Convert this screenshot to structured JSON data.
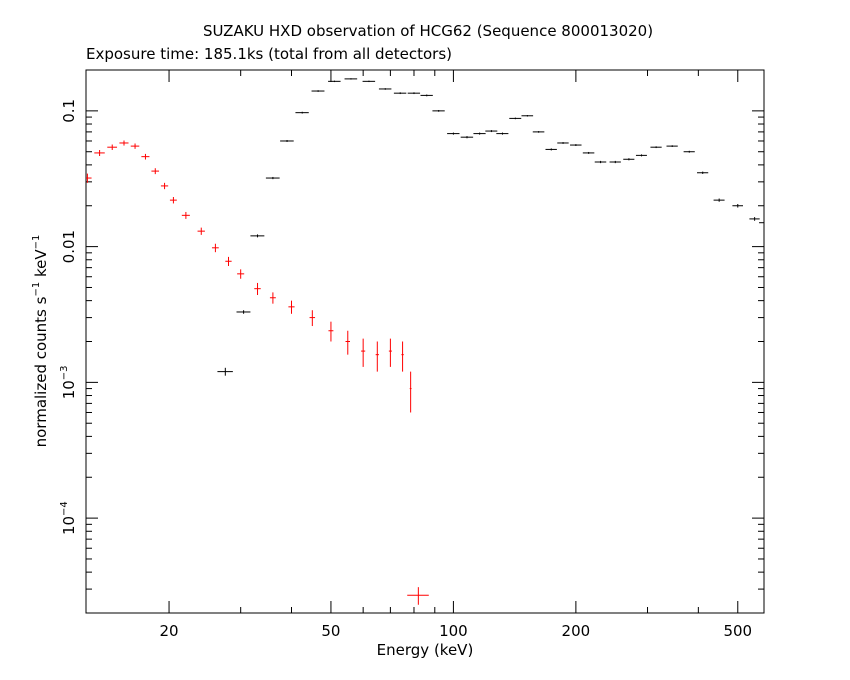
{
  "chart_data": {
    "type": "scatter",
    "title": "SUZAKU HXD observation of HCG62 (Sequence 800013020)",
    "subtitle": "Exposure time: 185.1ks (total from all detectors)",
    "xlabel": "Energy (keV)",
    "ylabel_main": "normalized counts s",
    "ylabel_sup1": "−1",
    "ylabel_mid": " keV",
    "ylabel_sup2": "−1",
    "xscale": "log",
    "yscale": "log",
    "xlim": [
      12.5,
      580
    ],
    "ylim": [
      2e-05,
      0.2
    ],
    "x_ticks": [
      {
        "value": 20,
        "label": "20"
      },
      {
        "value": 50,
        "label": "50"
      },
      {
        "value": 100,
        "label": "100"
      },
      {
        "value": 200,
        "label": "200"
      },
      {
        "value": 500,
        "label": "500"
      }
    ],
    "y_ticks": [
      {
        "value": 0.1,
        "base": "0.1",
        "exp": ""
      },
      {
        "value": 0.01,
        "base": "0.01",
        "exp": ""
      },
      {
        "value": 0.001,
        "base": "10",
        "exp": "−3"
      },
      {
        "value": 0.0001,
        "base": "10",
        "exp": "−4"
      }
    ],
    "grid": false,
    "legend": "none",
    "series": [
      {
        "color": "#ff0000",
        "x": [
          12.6,
          13.5,
          14.5,
          15.5,
          16.5,
          17.5,
          18.5,
          19.5,
          20.5,
          22,
          24,
          26,
          28,
          30,
          33,
          36,
          40,
          45,
          50,
          55,
          60,
          65,
          70,
          75,
          78.5
        ],
        "y": [
          0.032,
          0.049,
          0.054,
          0.058,
          0.055,
          0.046,
          0.036,
          0.028,
          0.022,
          0.017,
          0.013,
          0.0098,
          0.0078,
          0.0063,
          0.0049,
          0.0042,
          0.0036,
          0.003,
          0.0024,
          0.002,
          0.0017,
          0.0016,
          0.0017,
          0.0016,
          0.0009
        ],
        "xerr": [
          0.3,
          0.4,
          0.4,
          0.4,
          0.4,
          0.4,
          0.4,
          0.4,
          0.4,
          0.5,
          0.5,
          0.5,
          0.5,
          0.6,
          0.6,
          0.6,
          0.7,
          0.7,
          0.7,
          0.7,
          0.7,
          0.6,
          0.6,
          0.5,
          0.4
        ],
        "yerr": [
          0.0025,
          0.0025,
          0.0025,
          0.0025,
          0.0025,
          0.0022,
          0.0018,
          0.0015,
          0.0012,
          0.001,
          0.0008,
          0.0007,
          0.0006,
          0.0005,
          0.0005,
          0.0004,
          0.0004,
          0.0004,
          0.0004,
          0.0004,
          0.0004,
          0.0004,
          0.0004,
          0.0004,
          0.0003
        ]
      },
      {
        "color": "#ff0000",
        "x": [
          82
        ],
        "y": [
          2.7e-05
        ],
        "xerr": [
          5
        ],
        "yerr": [
          4e-06
        ]
      },
      {
        "color": "#000000",
        "x": [
          27.5,
          30.5,
          33,
          36,
          39,
          42.5,
          46.5,
          51,
          56,
          62,
          68,
          74,
          80,
          86,
          92,
          100,
          108,
          116,
          124,
          132,
          142,
          152,
          162,
          174,
          186,
          200,
          215,
          230,
          250,
          270,
          290,
          315,
          345,
          380,
          410,
          450,
          500,
          550,
          580
        ],
        "y": [
          0.0012,
          0.0033,
          0.012,
          0.032,
          0.06,
          0.097,
          0.14,
          0.165,
          0.172,
          0.165,
          0.145,
          0.135,
          0.135,
          0.13,
          0.1,
          0.068,
          0.064,
          0.068,
          0.071,
          0.068,
          0.088,
          0.092,
          0.07,
          0.052,
          0.058,
          0.056,
          0.049,
          0.042,
          0.042,
          0.044,
          0.047,
          0.054,
          0.055,
          0.05,
          0.035,
          0.022,
          0.02,
          0.016,
          0.015
        ],
        "xerr": [
          1.2,
          1.2,
          1.3,
          1.4,
          1.5,
          1.6,
          1.7,
          1.8,
          2.0,
          2.2,
          2.4,
          2.6,
          2.8,
          3.0,
          3.2,
          3.5,
          3.8,
          4.0,
          4.2,
          4.5,
          4.8,
          5.0,
          5.3,
          5.6,
          6.0,
          6.5,
          7.0,
          7.5,
          8.0,
          8.5,
          9.0,
          10,
          11,
          12,
          13,
          14,
          15,
          16,
          16
        ],
        "yerr": [
          8e-05,
          0.0001,
          0.0003,
          0.0006,
          0.001,
          0.0015,
          0.002,
          0.002,
          0.002,
          0.002,
          0.002,
          0.002,
          0.002,
          0.002,
          0.0015,
          0.0012,
          0.0012,
          0.0012,
          0.0012,
          0.0012,
          0.0012,
          0.0012,
          0.001,
          0.0009,
          0.0009,
          0.0009,
          0.0008,
          0.0008,
          0.0008,
          0.0008,
          0.0008,
          0.0008,
          0.0008,
          0.0008,
          0.0007,
          0.0006,
          0.0006,
          0.0005,
          0.0005
        ]
      }
    ]
  }
}
